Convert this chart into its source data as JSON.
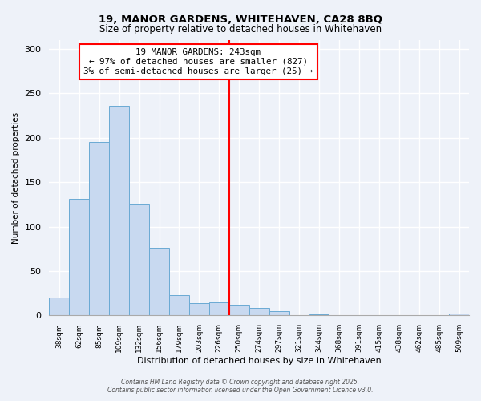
{
  "title": "19, MANOR GARDENS, WHITEHAVEN, CA28 8BQ",
  "subtitle": "Size of property relative to detached houses in Whitehaven",
  "xlabel": "Distribution of detached houses by size in Whitehaven",
  "ylabel": "Number of detached properties",
  "bar_labels": [
    "38sqm",
    "62sqm",
    "85sqm",
    "109sqm",
    "132sqm",
    "156sqm",
    "179sqm",
    "203sqm",
    "226sqm",
    "250sqm",
    "274sqm",
    "297sqm",
    "321sqm",
    "344sqm",
    "368sqm",
    "391sqm",
    "415sqm",
    "438sqm",
    "462sqm",
    "485sqm",
    "509sqm"
  ],
  "bar_values": [
    20,
    131,
    195,
    236,
    126,
    76,
    23,
    14,
    15,
    12,
    8,
    5,
    0,
    1,
    0,
    0,
    0,
    0,
    0,
    0,
    2
  ],
  "bar_color": "#c8d9f0",
  "bar_edge_color": "#6aaad4",
  "vline_x": 9.0,
  "vline_color": "red",
  "annotation_title": "19 MANOR GARDENS: 243sqm",
  "annotation_line1": "← 97% of detached houses are smaller (827)",
  "annotation_line2": "3% of semi-detached houses are larger (25) →",
  "annotation_box_color": "white",
  "annotation_box_edge_color": "red",
  "ylim": [
    0,
    310
  ],
  "yticks": [
    0,
    50,
    100,
    150,
    200,
    250,
    300
  ],
  "footer1": "Contains HM Land Registry data © Crown copyright and database right 2025.",
  "footer2": "Contains public sector information licensed under the Open Government Licence v3.0.",
  "bg_color": "#eef2f9"
}
